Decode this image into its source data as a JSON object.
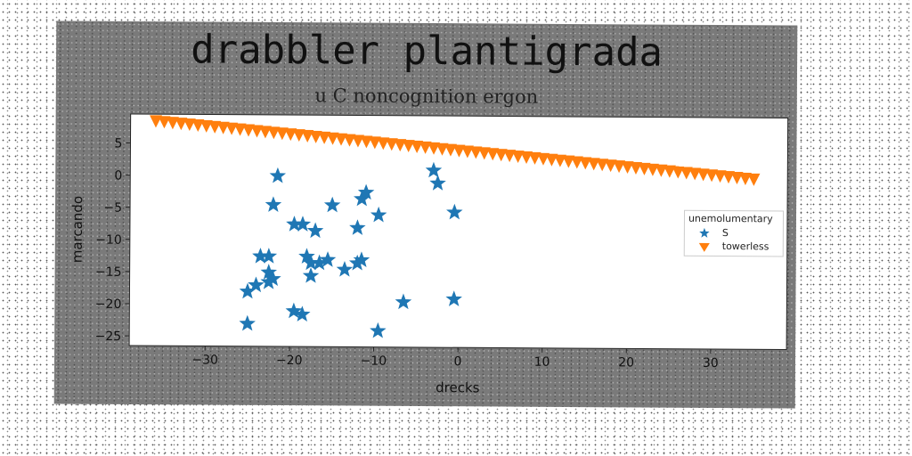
{
  "chart_data": {
    "type": "scatter",
    "title": "drabbler plantigrada",
    "subtitle": "u C noncognition ergon",
    "xlabel": "drecks",
    "ylabel": "marcando",
    "xlim": [
      -39,
      39
    ],
    "ylim": [
      -26.5,
      9.5
    ],
    "xticks": [
      -30,
      -20,
      -10,
      0,
      10,
      20,
      30
    ],
    "yticks": [
      5,
      0,
      -5,
      -10,
      -15,
      -20,
      -25
    ],
    "xtick_labels": [
      "−30",
      "−20",
      "−10",
      "0",
      "10",
      "20",
      "30"
    ],
    "ytick_labels": [
      "5",
      "0",
      "−5",
      "−10",
      "−15",
      "−20",
      "−25"
    ],
    "legend": {
      "title": "unemolumentary",
      "placement": "right"
    },
    "series": [
      {
        "name": "S",
        "marker": "star",
        "color": "#1f77b4",
        "points": [
          [
            -21.5,
            0.0
          ],
          [
            -22.0,
            -4.5
          ],
          [
            -19.5,
            -7.5
          ],
          [
            -18.5,
            -7.5
          ],
          [
            -17.0,
            -8.5
          ],
          [
            -15.0,
            -4.5
          ],
          [
            -12.0,
            -8.0
          ],
          [
            -11.5,
            -3.5
          ],
          [
            -11.0,
            -2.5
          ],
          [
            -9.5,
            -6.0
          ],
          [
            -3.0,
            1.0
          ],
          [
            -2.5,
            -1.0
          ],
          [
            -0.5,
            -5.5
          ],
          [
            -23.5,
            -12.5
          ],
          [
            -22.5,
            -12.5
          ],
          [
            -18.0,
            -12.5
          ],
          [
            -17.5,
            -13.5
          ],
          [
            -16.5,
            -13.5
          ],
          [
            -15.5,
            -13.0
          ],
          [
            -12.0,
            -13.5
          ],
          [
            -11.5,
            -13.0
          ],
          [
            -13.5,
            -14.5
          ],
          [
            -17.5,
            -15.5
          ],
          [
            -22.5,
            -15.0
          ],
          [
            -22.0,
            -16.0
          ],
          [
            -22.5,
            -16.5
          ],
          [
            -24.0,
            -17.0
          ],
          [
            -25.0,
            -18.0
          ],
          [
            -19.5,
            -21.0
          ],
          [
            -18.5,
            -21.5
          ],
          [
            -25.0,
            -23.0
          ],
          [
            -6.5,
            -19.5
          ],
          [
            -0.5,
            -19.0
          ],
          [
            -9.5,
            -24.0
          ]
        ]
      },
      {
        "name": "towerless",
        "marker": "triangle_down",
        "color": "#ff7f0e",
        "line": {
          "x_start": -36,
          "x_end": 35,
          "y_start": 8.5,
          "y_end": 0,
          "count": 72
        }
      }
    ]
  }
}
